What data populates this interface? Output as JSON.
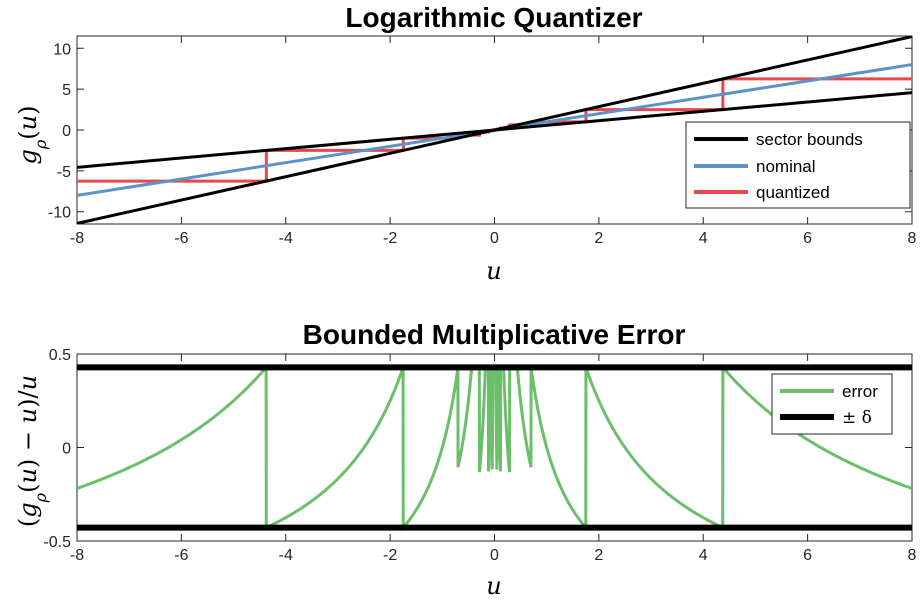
{
  "chart_data": [
    {
      "type": "line",
      "title": "Logarithmic Quantizer",
      "xlabel": "u",
      "ylabel": "g_ρ(u)",
      "xlim": [
        -8,
        8
      ],
      "ylim": [
        -11.5,
        11.5
      ],
      "xticks": [
        "-8",
        "-6",
        "-4",
        "-2",
        "0",
        "2",
        "4",
        "6",
        "8"
      ],
      "yticks": [
        "10",
        "5",
        "0",
        "-5",
        "-10"
      ],
      "legend_position": "right-lower",
      "series": [
        {
          "name": "sector bounds",
          "color": "#000000",
          "lines": [
            {
              "x": [
                -8,
                8
              ],
              "y": [
                -11.43,
                11.43
              ]
            },
            {
              "x": [
                -8,
                8
              ],
              "y": [
                -4.57,
                4.57
              ]
            }
          ]
        },
        {
          "name": "nominal",
          "color": "#5b93c9",
          "x": [
            -8,
            8
          ],
          "y": [
            -8,
            8
          ]
        },
        {
          "name": "quantized",
          "color": "#e8484b",
          "levels": [
            0.1,
            0.25,
            0.625,
            1.0,
            2.5,
            6.25
          ],
          "boundaries": [
            0.116,
            0.29,
            0.7,
            1.75,
            4.375
          ]
        }
      ]
    },
    {
      "type": "line",
      "title": "Bounded Multiplicative Error",
      "xlabel": "u",
      "ylabel": "(g_ρ(u) − u)/u",
      "xlim": [
        -8,
        8
      ],
      "ylim": [
        -0.5,
        0.5
      ],
      "xticks": [
        "-8",
        "-6",
        "-4",
        "-2",
        "0",
        "2",
        "4",
        "6",
        "8"
      ],
      "yticks": [
        "0.5",
        "0",
        "-0.5"
      ],
      "legend_position": "top-right",
      "series": [
        {
          "name": "error",
          "color": "#6cbf6a"
        },
        {
          "name": "± δ",
          "color": "#000000",
          "values": [
            0.4286,
            -0.4286
          ]
        }
      ]
    }
  ]
}
